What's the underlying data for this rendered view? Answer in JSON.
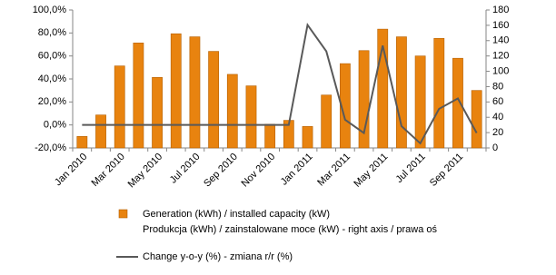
{
  "chart_data": {
    "type": "bar-line",
    "categories": [
      "Jan 2010",
      null,
      "Mar 2010",
      null,
      "May 2010",
      null,
      "Jul 2010",
      null,
      "Sep 2010",
      null,
      "Nov 2010",
      null,
      "Jan 2011",
      null,
      "Mar 2011",
      null,
      "May 2011",
      null,
      "Jul 2011",
      null,
      "Sep 2011",
      null
    ],
    "series": [
      {
        "name": "Generation (kWh) / installed capacity (kW)",
        "name_2": "Produkcja (kWh) / zainstalowane  moce (kW) - right axis / prawa oś",
        "type": "bar",
        "axis": "y2",
        "color": "#e8830f",
        "values": [
          15,
          43,
          107,
          137,
          92,
          149,
          145,
          126,
          96,
          81,
          31,
          36,
          28,
          69,
          110,
          127,
          155,
          145,
          120,
          143,
          117,
          75
        ]
      },
      {
        "name": "Change y-o-y (%) - zmiana  r/r (%)",
        "type": "line",
        "color": "#595959",
        "values": [
          0,
          0,
          0,
          0,
          0,
          0,
          0,
          0,
          0,
          0,
          0,
          0,
          87,
          64,
          4.5,
          -7,
          69,
          -1,
          -16,
          14,
          23,
          -7
        ]
      }
    ],
    "ylim": [
      -20,
      100
    ],
    "yticks": [
      {
        "value": -20,
        "label": "-20,0%"
      },
      {
        "value": 0,
        "label": "0,0%"
      },
      {
        "value": 20,
        "label": "20,0%"
      },
      {
        "value": 40,
        "label": "40,0%"
      },
      {
        "value": 60,
        "label": "60,0%"
      },
      {
        "value": 80,
        "label": "80,0%"
      },
      {
        "value": 100,
        "label": "100,0%"
      }
    ],
    "y2lim": [
      0,
      180
    ],
    "y2ticks": [
      0,
      20,
      40,
      60,
      80,
      100,
      120,
      140,
      160,
      180
    ],
    "grid": false,
    "legend": "bottom"
  }
}
